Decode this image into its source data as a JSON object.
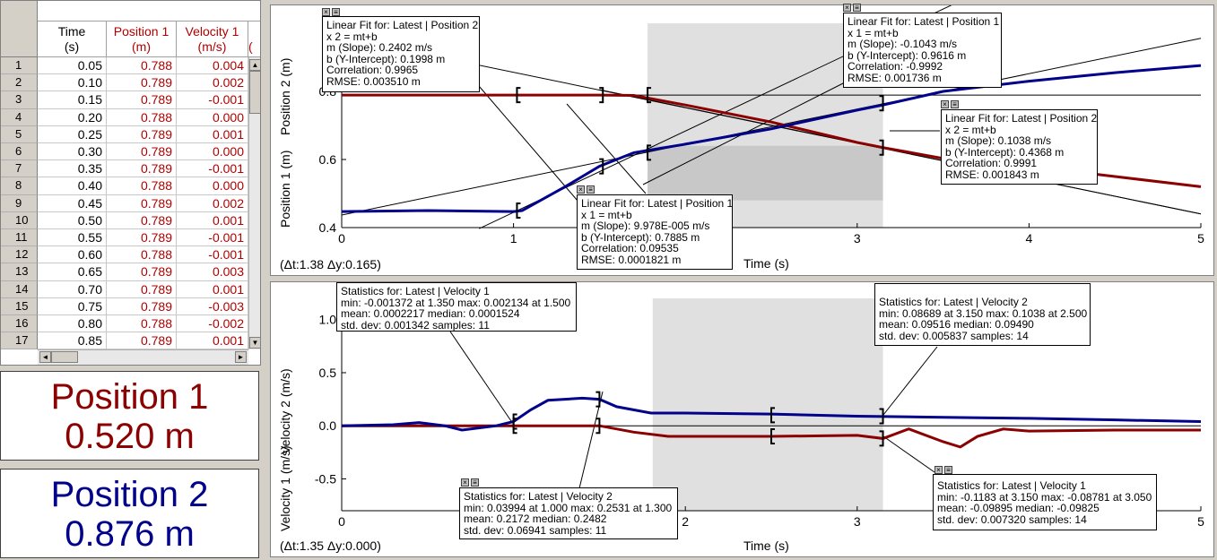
{
  "table": {
    "columns": [
      {
        "name": "Time",
        "unit": "(s)"
      },
      {
        "name": "Position 1",
        "unit": "(m)"
      },
      {
        "name": "Velocity 1",
        "unit": "(m/s)"
      }
    ],
    "partial_column": "(",
    "rows": [
      {
        "n": "1",
        "t": "0.05",
        "p": "0.788",
        "v": "0.004"
      },
      {
        "n": "2",
        "t": "0.10",
        "p": "0.789",
        "v": "0.002"
      },
      {
        "n": "3",
        "t": "0.15",
        "p": "0.789",
        "v": "-0.001"
      },
      {
        "n": "4",
        "t": "0.20",
        "p": "0.788",
        "v": "0.000"
      },
      {
        "n": "5",
        "t": "0.25",
        "p": "0.789",
        "v": "0.001"
      },
      {
        "n": "6",
        "t": "0.30",
        "p": "0.789",
        "v": "0.000"
      },
      {
        "n": "7",
        "t": "0.35",
        "p": "0.789",
        "v": "-0.001"
      },
      {
        "n": "8",
        "t": "0.40",
        "p": "0.788",
        "v": "0.000"
      },
      {
        "n": "9",
        "t": "0.45",
        "p": "0.789",
        "v": "0.002"
      },
      {
        "n": "10",
        "t": "0.50",
        "p": "0.789",
        "v": "0.001"
      },
      {
        "n": "11",
        "t": "0.55",
        "p": "0.789",
        "v": "-0.001"
      },
      {
        "n": "12",
        "t": "0.60",
        "p": "0.788",
        "v": "-0.001"
      },
      {
        "n": "13",
        "t": "0.65",
        "p": "0.789",
        "v": "0.003"
      },
      {
        "n": "14",
        "t": "0.70",
        "p": "0.789",
        "v": "0.001"
      },
      {
        "n": "15",
        "t": "0.75",
        "p": "0.789",
        "v": "-0.003"
      },
      {
        "n": "16",
        "t": "0.80",
        "p": "0.788",
        "v": "-0.002"
      },
      {
        "n": "17",
        "t": "0.85",
        "p": "0.789",
        "v": "0.001"
      }
    ]
  },
  "meters": [
    {
      "label": "Position 1",
      "value": "0.520 m",
      "color": "#8b0000"
    },
    {
      "label": "Position 2",
      "value": "0.876 m",
      "color": "#00008b"
    }
  ],
  "graph_top": {
    "ylabel_upper": "Position 2 (m)",
    "ylabel_lower": "Position 1 (m)",
    "xlabel": "Time (s)",
    "xticks": [
      "0",
      "1",
      "2",
      "3",
      "4",
      "5"
    ],
    "yticks": [
      "0.4",
      "0.6",
      "0.8",
      "1"
    ],
    "delta": "(Δt:1.38 Δy:0.165)",
    "fits": [
      {
        "lines": [
          "Linear Fit for: Latest | Position 2",
          "x 2 = mt+b",
          "m (Slope): 0.2402 m/s",
          "b (Y-Intercept): 0.1998 m",
          "Correlation: 0.9965",
          "RMSE: 0.003510 m"
        ]
      },
      {
        "lines": [
          "Linear Fit for: Latest | Position 1",
          "x 1 = mt+b",
          "m (Slope): -0.1043 m/s",
          "b (Y-Intercept): 0.9616 m",
          "Correlation: -0.9992",
          "RMSE: 0.001736 m"
        ]
      },
      {
        "lines": [
          "Linear Fit for: Latest | Position 2",
          "x 2 = mt+b",
          "m (Slope): 0.1038 m/s",
          "b (Y-Intercept): 0.4368 m",
          "Correlation: 0.9991",
          "RMSE: 0.001843 m"
        ]
      },
      {
        "lines": [
          "Linear Fit for: Latest | Position 1",
          "x 1 = mt+b",
          "m (Slope): 9.978E-005 m/s",
          "b (Y-Intercept): 0.7885 m",
          "Correlation: 0.09535",
          "RMSE: 0.0001821 m"
        ]
      }
    ]
  },
  "graph_bottom": {
    "ylabel_upper": "Velocity 2 (m/s)",
    "ylabel_lower": "Velocity 1 (m/s)",
    "xlabel": "Time (s)",
    "xticks": [
      "0",
      "2",
      "3",
      "4",
      "5"
    ],
    "yticks": [
      "1.0",
      "0.5",
      "0.0",
      "-0.5"
    ],
    "delta": "(Δt:1.35 Δy:0.000)",
    "stats": [
      {
        "lines": [
          "Statistics for: Latest | Velocity 1",
          "min: -0.001372 at 1.350 max: 0.002134 at 1.500",
          "mean: 0.0002217 median: 0.0001524",
          "std. dev: 0.001342 samples: 11"
        ]
      },
      {
        "lines": [
          "Statistics for: Latest | Velocity 2",
          "min: 0.08689 at 3.150 max: 0.1038 at 2.500",
          "mean: 0.09516 median: 0.09490",
          "std. dev: 0.005837 samples: 14"
        ]
      },
      {
        "lines": [
          "Statistics for: Latest | Velocity 2",
          "min: 0.03994 at 1.000 max: 0.2531 at 1.300",
          "mean: 0.2172 median: 0.2482",
          "std. dev: 0.06941 samples: 11"
        ]
      },
      {
        "lines": [
          "Statistics for: Latest | Velocity 1",
          "min: -0.1183 at 3.150 max: -0.08781 at 3.050",
          "mean: -0.09895 median: -0.09825",
          "std. dev: 0.007320 samples: 14"
        ]
      }
    ]
  },
  "chart_data": [
    {
      "type": "line",
      "xlabel": "Time (s)",
      "ylabel": "Position 2 (m) / Position 1 (m)",
      "xlim": [
        0,
        5
      ],
      "ylim": [
        0.4,
        1.0
      ],
      "series": [
        {
          "name": "Position 1",
          "color": "#8b0000",
          "x": [
            0.0,
            0.5,
            1.0,
            1.5,
            1.7,
            2.0,
            2.5,
            3.0,
            3.15,
            3.5,
            4.0,
            4.5,
            5.0
          ],
          "y": [
            0.789,
            0.789,
            0.789,
            0.789,
            0.788,
            0.76,
            0.71,
            0.65,
            0.635,
            0.603,
            0.58,
            0.55,
            0.52
          ]
        },
        {
          "name": "Position 2",
          "color": "#00008b",
          "x": [
            0.0,
            0.5,
            1.0,
            1.05,
            1.3,
            1.5,
            1.7,
            2.0,
            2.5,
            3.0,
            3.15,
            3.5,
            4.0,
            4.5,
            5.0
          ],
          "y": [
            0.447,
            0.45,
            0.447,
            0.45,
            0.52,
            0.58,
            0.62,
            0.645,
            0.69,
            0.745,
            0.76,
            0.8,
            0.83,
            0.855,
            0.876
          ]
        }
      ]
    },
    {
      "type": "line",
      "xlabel": "Time (s)",
      "ylabel": "Velocity 2 (m/s) / Velocity 1 (m/s)",
      "xlim": [
        0,
        5
      ],
      "ylim": [
        -0.8,
        1.2
      ],
      "series": [
        {
          "name": "Velocity 1",
          "color": "#8b0000",
          "x": [
            0.0,
            0.5,
            1.0,
            1.5,
            1.7,
            1.9,
            2.5,
            3.0,
            3.15,
            3.3,
            3.5,
            3.6,
            3.7,
            3.85,
            4.0,
            4.5,
            5.0
          ],
          "y": [
            0.0,
            0.0,
            0.0,
            0.0,
            -0.06,
            -0.1,
            -0.1,
            -0.09,
            -0.12,
            -0.03,
            -0.15,
            -0.2,
            -0.1,
            -0.03,
            -0.05,
            -0.04,
            -0.04
          ]
        },
        {
          "name": "Velocity 2",
          "color": "#00008b",
          "x": [
            0.0,
            0.3,
            0.45,
            0.6,
            0.7,
            0.9,
            1.0,
            1.1,
            1.2,
            1.4,
            1.5,
            1.6,
            1.8,
            2.0,
            2.5,
            3.0,
            3.5,
            4.0,
            4.5,
            5.0
          ],
          "y": [
            0.0,
            0.01,
            0.03,
            0.0,
            -0.04,
            0.0,
            0.04,
            0.15,
            0.24,
            0.26,
            0.25,
            0.18,
            0.12,
            0.12,
            0.11,
            0.09,
            0.08,
            0.07,
            0.055,
            0.04
          ]
        }
      ]
    }
  ]
}
